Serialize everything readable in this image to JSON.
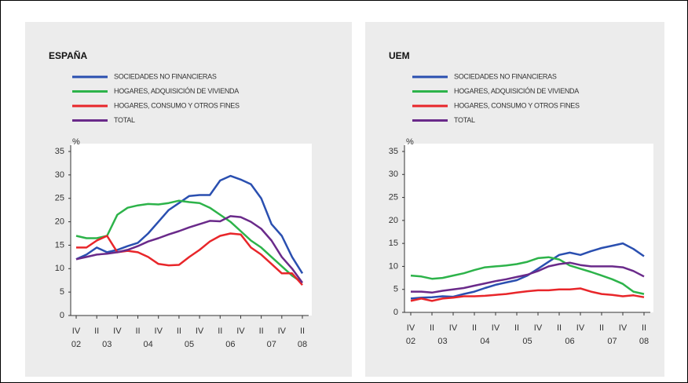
{
  "chart_data": [
    {
      "type": "line",
      "title": "ESPAÑA",
      "y_unit": "%",
      "categories": [
        "IV",
        null,
        "II",
        null,
        "IV",
        null,
        "II",
        null,
        "IV",
        null,
        "II",
        null,
        "IV",
        null,
        "II",
        null,
        "IV",
        null,
        "II",
        null,
        "IV",
        null,
        "II"
      ],
      "year_labels": [
        "02",
        null,
        null,
        "03",
        null,
        null,
        null,
        "04",
        null,
        null,
        null,
        "05",
        null,
        null,
        null,
        "06",
        null,
        null,
        null,
        "07",
        null,
        null,
        "08"
      ],
      "ylim": [
        0,
        35
      ],
      "yticks": [
        0,
        5,
        10,
        15,
        20,
        25,
        30,
        35
      ],
      "series": [
        {
          "name": "SOCIEDADES NO FINANCIERAS",
          "color": "#2a4fb0",
          "values": [
            12,
            13,
            14.5,
            13.5,
            14,
            14.8,
            15.5,
            17.5,
            20,
            22.5,
            24,
            25.5,
            25.7,
            25.7,
            28.8,
            29.8,
            29,
            28,
            25,
            19.5,
            17,
            12.5,
            9
          ]
        },
        {
          "name": "HOGARES, ADQUISICIÓN DE VIVIENDA",
          "color": "#2db34a",
          "values": [
            17,
            16.5,
            16.5,
            17,
            21.5,
            23,
            23.5,
            23.8,
            23.7,
            24,
            24.5,
            24.2,
            24,
            23,
            21.5,
            20,
            18,
            16,
            14.5,
            12.5,
            10.5,
            8.5,
            7
          ]
        },
        {
          "name": "HOGARES, CONSUMO Y OTROS FINES",
          "color": "#e8262a",
          "values": [
            14.5,
            14.5,
            16,
            17,
            13.5,
            13.8,
            13.5,
            12.5,
            11,
            10.7,
            10.8,
            12.5,
            14,
            15.8,
            17,
            17.5,
            17.3,
            14.5,
            13,
            11,
            9,
            9,
            6.5
          ]
        },
        {
          "name": "TOTAL",
          "color": "#6a2a8a",
          "values": [
            12,
            12.5,
            13,
            13.2,
            13.5,
            14,
            14.8,
            15.8,
            16.5,
            17.3,
            18,
            18.8,
            19.5,
            20.2,
            20.1,
            21.2,
            21,
            20,
            18.5,
            16,
            12.5,
            10,
            7
          ]
        }
      ]
    },
    {
      "type": "line",
      "title": "UEM",
      "y_unit": "%",
      "categories": [
        "IV",
        null,
        "II",
        null,
        "IV",
        null,
        "II",
        null,
        "IV",
        null,
        "II",
        null,
        "IV",
        null,
        "II",
        null,
        "IV",
        null,
        "II",
        null,
        "IV",
        null,
        "II"
      ],
      "year_labels": [
        "02",
        null,
        null,
        "03",
        null,
        null,
        null,
        "04",
        null,
        null,
        null,
        "05",
        null,
        null,
        null,
        "06",
        null,
        null,
        null,
        "07",
        null,
        null,
        "08"
      ],
      "ylim": [
        0,
        35
      ],
      "yticks": [
        0,
        5,
        10,
        15,
        20,
        25,
        30,
        35
      ],
      "series": [
        {
          "name": "SOCIEDADES NO FINANCIERAS",
          "color": "#2a4fb0",
          "values": [
            3,
            3.2,
            3.3,
            3.5,
            3.4,
            4,
            4.5,
            5.3,
            6,
            6.5,
            7,
            8,
            9.5,
            11,
            12.5,
            13,
            12.5,
            13.3,
            14,
            14.5,
            15,
            13.8,
            12.2
          ]
        },
        {
          "name": "HOGARES, ADQUISICIÓN DE VIVIENDA",
          "color": "#2db34a",
          "values": [
            8,
            7.8,
            7.3,
            7.5,
            8,
            8.5,
            9.2,
            9.8,
            10,
            10.2,
            10.5,
            11,
            11.8,
            12,
            11.5,
            10.2,
            9.5,
            8.8,
            8,
            7.2,
            6.2,
            4.5,
            4
          ]
        },
        {
          "name": "HOGARES, CONSUMO Y OTROS FINES",
          "color": "#e8262a",
          "values": [
            2.5,
            3,
            2.5,
            3,
            3.2,
            3.5,
            3.5,
            3.6,
            3.8,
            4,
            4.3,
            4.6,
            4.8,
            4.8,
            5,
            5,
            5.2,
            4.5,
            4,
            3.8,
            3.5,
            3.7,
            3.3
          ]
        },
        {
          "name": "TOTAL",
          "color": "#6a2a8a",
          "values": [
            4.5,
            4.5,
            4.3,
            4.7,
            5,
            5.3,
            5.8,
            6.3,
            6.8,
            7.2,
            7.7,
            8.2,
            9,
            10,
            10.5,
            10.8,
            10.3,
            10,
            10,
            10,
            9.8,
            9,
            7.8
          ]
        }
      ]
    }
  ]
}
